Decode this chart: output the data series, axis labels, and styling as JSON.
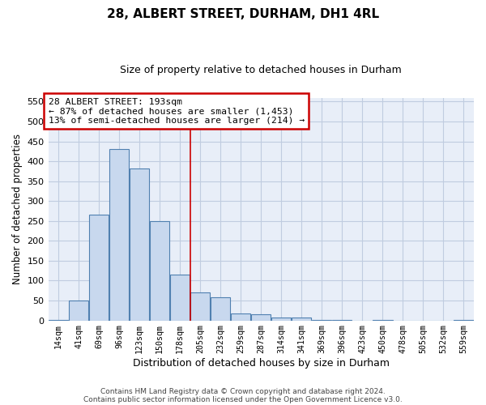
{
  "title": "28, ALBERT STREET, DURHAM, DH1 4RL",
  "subtitle": "Size of property relative to detached houses in Durham",
  "xlabel": "Distribution of detached houses by size in Durham",
  "ylabel": "Number of detached properties",
  "bar_color": "#c8d8ee",
  "bar_edge_color": "#5080b0",
  "categories": [
    "14sqm",
    "41sqm",
    "69sqm",
    "96sqm",
    "123sqm",
    "150sqm",
    "178sqm",
    "205sqm",
    "232sqm",
    "259sqm",
    "287sqm",
    "314sqm",
    "341sqm",
    "369sqm",
    "396sqm",
    "423sqm",
    "450sqm",
    "478sqm",
    "505sqm",
    "532sqm",
    "559sqm"
  ],
  "values": [
    2,
    50,
    265,
    430,
    382,
    250,
    115,
    70,
    58,
    17,
    15,
    7,
    7,
    2,
    2,
    0,
    2,
    0,
    0,
    0,
    2
  ],
  "vline_x": 7.0,
  "annotation_text": "28 ALBERT STREET: 193sqm\n← 87% of detached houses are smaller (1,453)\n13% of semi-detached houses are larger (214) →",
  "annotation_box_color": "#ffffff",
  "annotation_box_edge_color": "#cc0000",
  "ylim": [
    0,
    560
  ],
  "yticks": [
    0,
    50,
    100,
    150,
    200,
    250,
    300,
    350,
    400,
    450,
    500,
    550
  ],
  "footer1": "Contains HM Land Registry data © Crown copyright and database right 2024.",
  "footer2": "Contains public sector information licensed under the Open Government Licence v3.0.",
  "background_color": "#ffffff",
  "plot_bg_color": "#e8eef8",
  "grid_color": "#c0cce0",
  "vline_color": "#cc0000",
  "title_fontsize": 11,
  "subtitle_fontsize": 9
}
